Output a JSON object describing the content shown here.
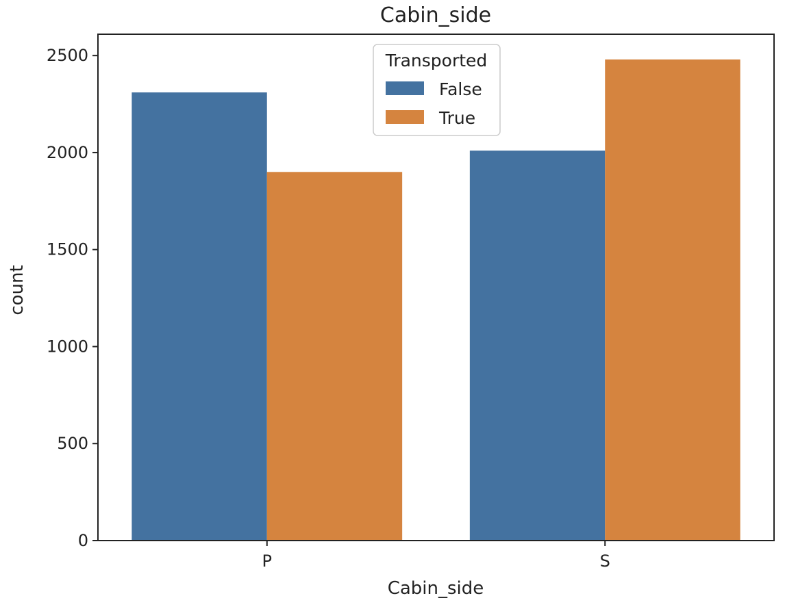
{
  "chart_data": {
    "type": "bar",
    "title": "Cabin_side",
    "xlabel": "Cabin_side",
    "ylabel": "count",
    "categories": [
      "P",
      "S"
    ],
    "series": [
      {
        "name": "False",
        "values": [
          2310,
          2010
        ],
        "color": "#4472a0"
      },
      {
        "name": "True",
        "values": [
          1900,
          2480
        ],
        "color": "#d5843f"
      }
    ],
    "ylim": [
      0,
      2610
    ],
    "yticks": [
      0,
      500,
      1000,
      1500,
      2000,
      2500
    ],
    "legend": {
      "title": "Transported",
      "placement": "upper center"
    },
    "grid": false
  }
}
